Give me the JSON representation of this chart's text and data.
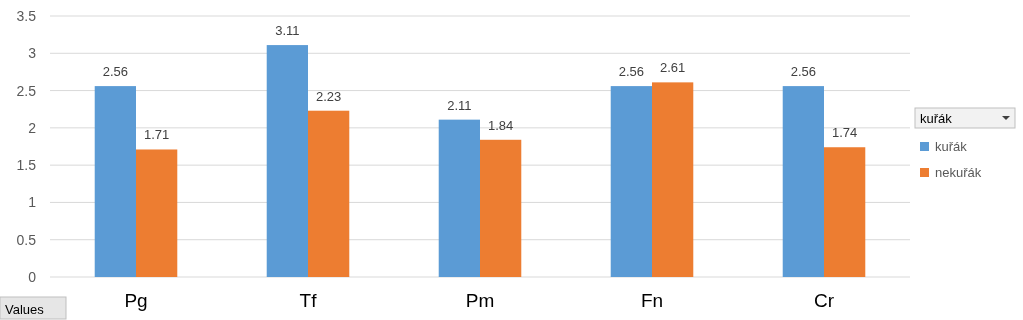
{
  "chart_data": {
    "type": "bar",
    "categories": [
      "Pg",
      "Tf",
      "Pm",
      "Fn",
      "Cr"
    ],
    "series": [
      {
        "name": "kuřák",
        "color": "#5b9bd5",
        "values": [
          2.56,
          3.11,
          2.11,
          2.56,
          2.56
        ]
      },
      {
        "name": "nekuřák",
        "color": "#ed7d31",
        "values": [
          1.71,
          2.23,
          1.84,
          2.61,
          1.74
        ]
      }
    ],
    "ylim": [
      0,
      3.5
    ],
    "yticks": [
      0,
      0.5,
      1,
      1.5,
      2,
      2.5,
      3,
      3.5
    ],
    "grid": "y",
    "data_labels": true,
    "legend": "right",
    "legend_title": "kuřák",
    "annotations": [
      "Values"
    ]
  }
}
